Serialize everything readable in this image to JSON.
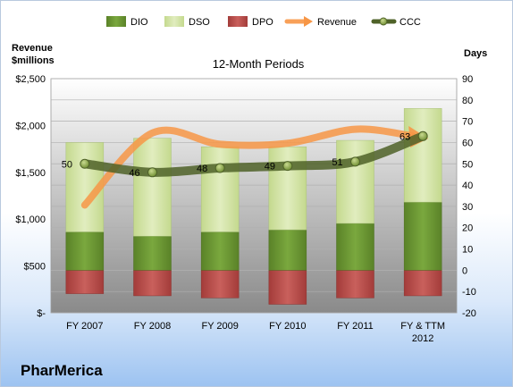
{
  "company": "PharMerica",
  "chart_data": {
    "type": "bar",
    "title": "12-Month Periods",
    "left_axis_title": [
      "Revenue",
      "$millions"
    ],
    "right_axis_title": "Days",
    "categories": [
      [
        "FY 2007"
      ],
      [
        "FY 2008"
      ],
      [
        "FY 2009"
      ],
      [
        "FY 2010"
      ],
      [
        "FY 2011"
      ],
      [
        "FY & TTM",
        "2012"
      ]
    ],
    "left_ylim": [
      0,
      2500
    ],
    "left_ticks": [
      0,
      500,
      1000,
      1500,
      2000,
      2500
    ],
    "left_tick_labels": [
      "$-",
      "$500",
      "$1,000",
      "$1,500",
      "$2,000",
      "$2,500"
    ],
    "right_ylim": [
      -20,
      90
    ],
    "right_ticks": [
      -20,
      -10,
      0,
      10,
      20,
      30,
      40,
      50,
      60,
      70,
      80,
      90
    ],
    "series": [
      {
        "name": "DIO",
        "kind": "bar",
        "axis": "days",
        "color": "#6e9a35",
        "values": [
          18,
          16,
          18,
          19,
          22,
          32
        ]
      },
      {
        "name": "DSO",
        "kind": "bar",
        "axis": "days",
        "color": "#d2e4a4",
        "values": [
          42,
          46,
          40,
          39,
          39,
          44
        ]
      },
      {
        "name": "DPO",
        "kind": "bar",
        "axis": "days",
        "color": "#c0504d",
        "values": [
          -11,
          -12,
          -13,
          -16,
          -13,
          -12
        ]
      },
      {
        "name": "Revenue",
        "kind": "line",
        "axis": "revenue",
        "color": "#f79646",
        "values": [
          1150,
          1920,
          1800,
          1810,
          1960,
          1870
        ]
      },
      {
        "name": "CCC",
        "kind": "line",
        "axis": "days",
        "color": "#4f6228",
        "values": [
          50,
          46,
          48,
          49,
          51,
          63
        ]
      }
    ],
    "ccc_labels": [
      "50",
      "46",
      "48",
      "49",
      "51",
      "63"
    ],
    "grid": true,
    "legend_position": "top"
  }
}
